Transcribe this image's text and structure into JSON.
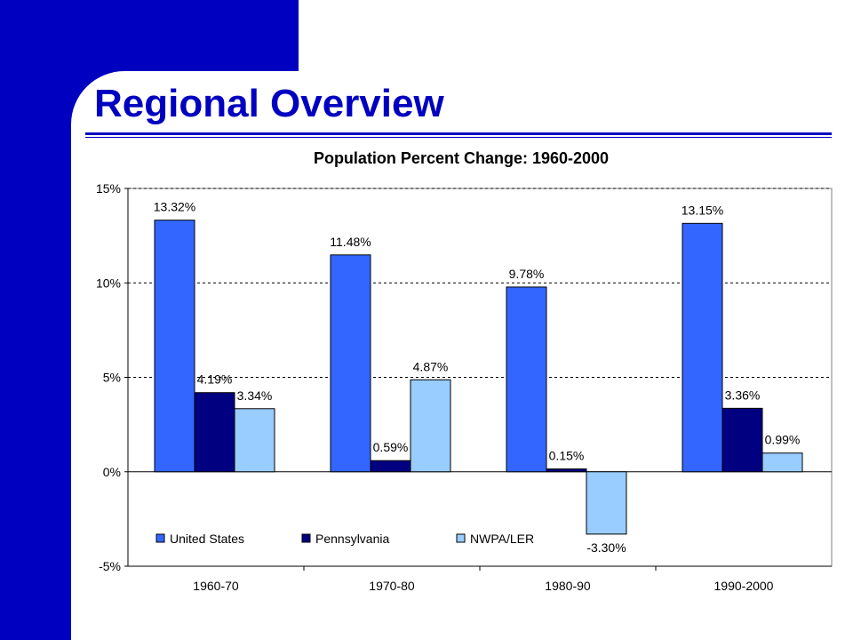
{
  "slide": {
    "title": "Regional Overview"
  },
  "chart_data": {
    "type": "bar",
    "title": "Population Percent Change: 1960-2000",
    "categories": [
      "1960-70",
      "1970-80",
      "1980-90",
      "1990-2000"
    ],
    "series": [
      {
        "name": "United States",
        "values": [
          13.32,
          11.48,
          9.78,
          13.15
        ],
        "labels": [
          "13.32%",
          "11.48%",
          "9.78%",
          "13.15%"
        ],
        "color": "#3366ff"
      },
      {
        "name": "Pennsylvania",
        "values": [
          4.19,
          0.59,
          0.15,
          3.36
        ],
        "labels": [
          "4.19%",
          "0.59%",
          "0.15%",
          "3.36%"
        ],
        "color": "#000080"
      },
      {
        "name": "NWPA/LER",
        "values": [
          3.34,
          4.87,
          -3.3,
          0.99
        ],
        "labels": [
          "3.34%",
          "4.87%",
          "-3.30%",
          "0.99%"
        ],
        "color": "#99ccff"
      }
    ],
    "ylim": [
      -5,
      15
    ],
    "yticks": [
      15,
      10,
      5,
      0,
      -5
    ],
    "ytick_labels": [
      "15%",
      "10%",
      "5%",
      "0%",
      "-5%"
    ],
    "grid": "dashed horizontal",
    "legend_position": "inside-bottom-left"
  }
}
